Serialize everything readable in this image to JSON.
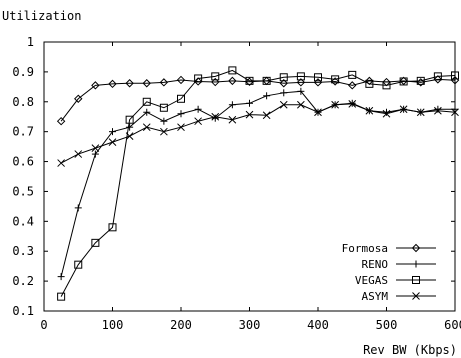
{
  "chart_data": {
    "type": "line",
    "title": "",
    "ylabel": "Utilization",
    "xlabel": "Rev BW (Kbps)",
    "xlim": [
      0,
      600
    ],
    "ylim": [
      0.1,
      1.0
    ],
    "xticks": [
      0,
      100,
      200,
      300,
      400,
      500,
      600
    ],
    "yticks": [
      0.1,
      0.2,
      0.3,
      0.4,
      0.5,
      0.6,
      0.7,
      0.8,
      0.9,
      1.0
    ],
    "ytick_labels": [
      "0.1",
      "0.2",
      "0.3",
      "0.4",
      "0.5",
      "0.6",
      "0.7",
      "0.8",
      "0.9",
      "1"
    ],
    "grid": false,
    "legend_position": "bottom-right",
    "series": [
      {
        "name": "Formosa",
        "marker": "diamond",
        "points": [
          [
            25,
            0.735
          ],
          [
            50,
            0.81
          ],
          [
            75,
            0.855
          ],
          [
            100,
            0.86
          ],
          [
            125,
            0.862
          ],
          [
            150,
            0.862
          ],
          [
            175,
            0.865
          ],
          [
            200,
            0.873
          ],
          [
            225,
            0.868
          ],
          [
            250,
            0.866
          ],
          [
            275,
            0.87
          ],
          [
            300,
            0.867
          ],
          [
            325,
            0.87
          ],
          [
            350,
            0.862
          ],
          [
            375,
            0.865
          ],
          [
            400,
            0.865
          ],
          [
            425,
            0.868
          ],
          [
            450,
            0.855
          ],
          [
            475,
            0.87
          ],
          [
            500,
            0.866
          ],
          [
            525,
            0.87
          ],
          [
            550,
            0.865
          ],
          [
            575,
            0.875
          ],
          [
            600,
            0.872
          ]
        ]
      },
      {
        "name": "RENO",
        "marker": "plus",
        "points": [
          [
            25,
            0.215
          ],
          [
            50,
            0.445
          ],
          [
            75,
            0.625
          ],
          [
            100,
            0.7
          ],
          [
            125,
            0.715
          ],
          [
            150,
            0.765
          ],
          [
            175,
            0.735
          ],
          [
            200,
            0.76
          ],
          [
            225,
            0.775
          ],
          [
            250,
            0.745
          ],
          [
            275,
            0.79
          ],
          [
            300,
            0.795
          ],
          [
            325,
            0.82
          ],
          [
            350,
            0.83
          ],
          [
            375,
            0.835
          ],
          [
            400,
            0.765
          ],
          [
            425,
            0.79
          ],
          [
            450,
            0.795
          ],
          [
            475,
            0.77
          ],
          [
            500,
            0.765
          ],
          [
            525,
            0.775
          ],
          [
            550,
            0.765
          ],
          [
            575,
            0.775
          ],
          [
            600,
            0.775
          ]
        ]
      },
      {
        "name": "VEGAS",
        "marker": "square",
        "points": [
          [
            25,
            0.148
          ],
          [
            50,
            0.255
          ],
          [
            75,
            0.328
          ],
          [
            100,
            0.38
          ],
          [
            125,
            0.74
          ],
          [
            150,
            0.8
          ],
          [
            175,
            0.78
          ],
          [
            200,
            0.81
          ],
          [
            225,
            0.878
          ],
          [
            250,
            0.885
          ],
          [
            275,
            0.905
          ],
          [
            300,
            0.87
          ],
          [
            325,
            0.87
          ],
          [
            350,
            0.882
          ],
          [
            375,
            0.885
          ],
          [
            400,
            0.882
          ],
          [
            425,
            0.875
          ],
          [
            450,
            0.89
          ],
          [
            475,
            0.86
          ],
          [
            500,
            0.855
          ],
          [
            525,
            0.868
          ],
          [
            550,
            0.87
          ],
          [
            575,
            0.885
          ],
          [
            600,
            0.888
          ]
        ]
      },
      {
        "name": "ASYM",
        "marker": "x",
        "points": [
          [
            25,
            0.595
          ],
          [
            50,
            0.625
          ],
          [
            75,
            0.645
          ],
          [
            100,
            0.665
          ],
          [
            125,
            0.685
          ],
          [
            150,
            0.715
          ],
          [
            175,
            0.7
          ],
          [
            200,
            0.715
          ],
          [
            225,
            0.735
          ],
          [
            250,
            0.75
          ],
          [
            275,
            0.74
          ],
          [
            300,
            0.757
          ],
          [
            325,
            0.755
          ],
          [
            350,
            0.79
          ],
          [
            375,
            0.79
          ],
          [
            400,
            0.765
          ],
          [
            425,
            0.79
          ],
          [
            450,
            0.793
          ],
          [
            475,
            0.77
          ],
          [
            500,
            0.76
          ],
          [
            525,
            0.775
          ],
          [
            550,
            0.765
          ],
          [
            575,
            0.77
          ],
          [
            600,
            0.765
          ]
        ]
      }
    ]
  }
}
